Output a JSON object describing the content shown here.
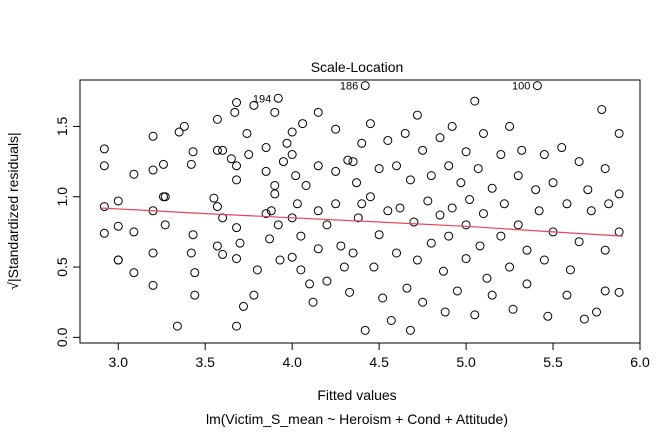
{
  "chart_data": {
    "type": "scatter",
    "title": "Scale-Location",
    "xlabel": "Fitted values",
    "subtitle": "lm(Victim_S_mean ~ Heroism + Cond + Attitude)",
    "ylabel": "√|Standardized residuals|",
    "xlim": [
      2.78,
      6.0
    ],
    "ylim": [
      -0.04,
      1.83
    ],
    "x_ticks": [
      3.0,
      3.5,
      4.0,
      4.5,
      5.0,
      5.5,
      6.0
    ],
    "x_tick_labels": [
      "3.0",
      "3.5",
      "4.0",
      "4.5",
      "5.0",
      "5.5",
      "6.0"
    ],
    "y_ticks": [
      0.0,
      0.5,
      1.0,
      1.5
    ],
    "y_tick_labels": [
      "0.0",
      "0.5",
      "1.0",
      "1.5"
    ],
    "smooth_line": {
      "color": "#e8445a",
      "x": [
        2.9,
        3.5,
        4.0,
        4.5,
        5.0,
        5.5,
        5.9
      ],
      "y": [
        0.92,
        0.88,
        0.85,
        0.82,
        0.79,
        0.75,
        0.72
      ]
    },
    "labeled_points": [
      {
        "label": "194",
        "x": 3.92,
        "y": 1.7
      },
      {
        "label": "186",
        "x": 4.42,
        "y": 1.79
      },
      {
        "label": "100",
        "x": 5.41,
        "y": 1.79
      }
    ],
    "points": [
      [
        2.92,
        1.34
      ],
      [
        2.92,
        1.22
      ],
      [
        2.92,
        0.93
      ],
      [
        2.92,
        0.74
      ],
      [
        3.0,
        0.97
      ],
      [
        3.0,
        0.79
      ],
      [
        3.0,
        0.55
      ],
      [
        3.0,
        0.55
      ],
      [
        3.09,
        1.16
      ],
      [
        3.09,
        0.75
      ],
      [
        3.09,
        0.46
      ],
      [
        3.2,
        1.43
      ],
      [
        3.2,
        1.19
      ],
      [
        3.2,
        0.9
      ],
      [
        3.2,
        0.6
      ],
      [
        3.2,
        0.37
      ],
      [
        3.26,
        1.23
      ],
      [
        3.26,
        1.0
      ],
      [
        3.27,
        1.0
      ],
      [
        3.27,
        0.8
      ],
      [
        3.34,
        0.08
      ],
      [
        3.35,
        1.46
      ],
      [
        3.38,
        1.5
      ],
      [
        3.42,
        1.23
      ],
      [
        3.42,
        0.6
      ],
      [
        3.43,
        1.32
      ],
      [
        3.43,
        0.73
      ],
      [
        3.44,
        0.46
      ],
      [
        3.44,
        0.3
      ],
      [
        3.55,
        0.99
      ],
      [
        3.57,
        1.55
      ],
      [
        3.57,
        1.33
      ],
      [
        3.57,
        0.93
      ],
      [
        3.57,
        0.65
      ],
      [
        3.6,
        1.33
      ],
      [
        3.6,
        0.85
      ],
      [
        3.6,
        0.59
      ],
      [
        3.65,
        1.27
      ],
      [
        3.67,
        1.6
      ],
      [
        3.68,
        1.67
      ],
      [
        3.68,
        1.22
      ],
      [
        3.68,
        1.12
      ],
      [
        3.68,
        0.78
      ],
      [
        3.68,
        0.56
      ],
      [
        3.68,
        0.08
      ],
      [
        3.7,
        0.67
      ],
      [
        3.72,
        0.22
      ],
      [
        3.74,
        1.45
      ],
      [
        3.75,
        1.3
      ],
      [
        3.78,
        1.65
      ],
      [
        3.78,
        0.3
      ],
      [
        3.8,
        0.48
      ],
      [
        3.85,
        1.35
      ],
      [
        3.85,
        1.18
      ],
      [
        3.85,
        0.88
      ],
      [
        3.87,
        0.7
      ],
      [
        3.88,
        0.9
      ],
      [
        3.9,
        1.6
      ],
      [
        3.9,
        1.08
      ],
      [
        3.9,
        1.02
      ],
      [
        3.92,
        0.8
      ],
      [
        3.93,
        0.55
      ],
      [
        3.95,
        1.25
      ],
      [
        3.97,
        1.38
      ],
      [
        4.0,
        1.46
      ],
      [
        4.0,
        1.3
      ],
      [
        4.0,
        0.85
      ],
      [
        4.0,
        0.57
      ],
      [
        4.02,
        1.15
      ],
      [
        4.03,
        0.95
      ],
      [
        4.05,
        0.72
      ],
      [
        4.05,
        0.48
      ],
      [
        4.06,
        1.52
      ],
      [
        4.08,
        1.08
      ],
      [
        4.1,
        0.38
      ],
      [
        4.12,
        0.25
      ],
      [
        4.15,
        1.6
      ],
      [
        4.15,
        1.22
      ],
      [
        4.15,
        0.9
      ],
      [
        4.15,
        0.63
      ],
      [
        4.2,
        0.8
      ],
      [
        4.2,
        0.4
      ],
      [
        4.25,
        1.48
      ],
      [
        4.25,
        1.18
      ],
      [
        4.25,
        0.95
      ],
      [
        4.28,
        0.65
      ],
      [
        4.3,
        0.5
      ],
      [
        4.32,
        1.26
      ],
      [
        4.33,
        0.32
      ],
      [
        4.35,
        1.25
      ],
      [
        4.35,
        0.6
      ],
      [
        4.37,
        1.1
      ],
      [
        4.38,
        0.85
      ],
      [
        4.4,
        1.38
      ],
      [
        4.4,
        0.95
      ],
      [
        4.42,
        0.05
      ],
      [
        4.45,
        1.52
      ],
      [
        4.45,
        1.0
      ],
      [
        4.47,
        0.5
      ],
      [
        4.5,
        1.2
      ],
      [
        4.5,
        0.73
      ],
      [
        4.52,
        0.28
      ],
      [
        4.55,
        1.4
      ],
      [
        4.55,
        0.9
      ],
      [
        4.57,
        0.12
      ],
      [
        4.6,
        1.22
      ],
      [
        4.6,
        0.6
      ],
      [
        4.62,
        0.92
      ],
      [
        4.65,
        1.45
      ],
      [
        4.66,
        0.35
      ],
      [
        4.68,
        1.12
      ],
      [
        4.68,
        0.05
      ],
      [
        4.7,
        0.82
      ],
      [
        4.72,
        1.58
      ],
      [
        4.72,
        0.55
      ],
      [
        4.75,
        1.33
      ],
      [
        4.75,
        0.25
      ],
      [
        4.78,
        0.97
      ],
      [
        4.8,
        1.15
      ],
      [
        4.8,
        0.67
      ],
      [
        4.85,
        1.42
      ],
      [
        4.85,
        0.87
      ],
      [
        4.87,
        0.47
      ],
      [
        4.88,
        0.18
      ],
      [
        4.9,
        1.22
      ],
      [
        4.9,
        0.72
      ],
      [
        4.92,
        1.5
      ],
      [
        4.92,
        0.92
      ],
      [
        4.95,
        0.33
      ],
      [
        4.97,
        1.1
      ],
      [
        5.0,
        1.32
      ],
      [
        5.0,
        0.8
      ],
      [
        5.0,
        0.56
      ],
      [
        5.02,
        0.98
      ],
      [
        5.05,
        1.68
      ],
      [
        5.05,
        0.16
      ],
      [
        5.07,
        1.2
      ],
      [
        5.08,
        0.65
      ],
      [
        5.1,
        1.45
      ],
      [
        5.1,
        0.88
      ],
      [
        5.12,
        0.42
      ],
      [
        5.15,
        1.06
      ],
      [
        5.15,
        0.3
      ],
      [
        5.2,
        1.3
      ],
      [
        5.2,
        0.72
      ],
      [
        5.22,
        0.95
      ],
      [
        5.25,
        1.5
      ],
      [
        5.25,
        0.5
      ],
      [
        5.27,
        0.2
      ],
      [
        5.3,
        1.15
      ],
      [
        5.3,
        0.8
      ],
      [
        5.32,
        1.33
      ],
      [
        5.35,
        0.62
      ],
      [
        5.35,
        0.38
      ],
      [
        5.4,
        1.05
      ],
      [
        5.42,
        0.9
      ],
      [
        5.45,
        1.3
      ],
      [
        5.45,
        0.55
      ],
      [
        5.47,
        0.15
      ],
      [
        5.5,
        1.1
      ],
      [
        5.5,
        0.75
      ],
      [
        5.55,
        1.35
      ],
      [
        5.58,
        0.95
      ],
      [
        5.58,
        0.3
      ],
      [
        5.6,
        0.48
      ],
      [
        5.65,
        1.25
      ],
      [
        5.65,
        0.68
      ],
      [
        5.68,
        0.13
      ],
      [
        5.7,
        1.05
      ],
      [
        5.72,
        0.9
      ],
      [
        5.75,
        0.18
      ],
      [
        5.78,
        1.62
      ],
      [
        5.8,
        1.2
      ],
      [
        5.8,
        0.62
      ],
      [
        5.8,
        0.33
      ],
      [
        5.82,
        0.95
      ],
      [
        5.88,
        1.45
      ],
      [
        5.88,
        1.02
      ],
      [
        5.88,
        0.75
      ],
      [
        5.88,
        0.32
      ]
    ]
  }
}
